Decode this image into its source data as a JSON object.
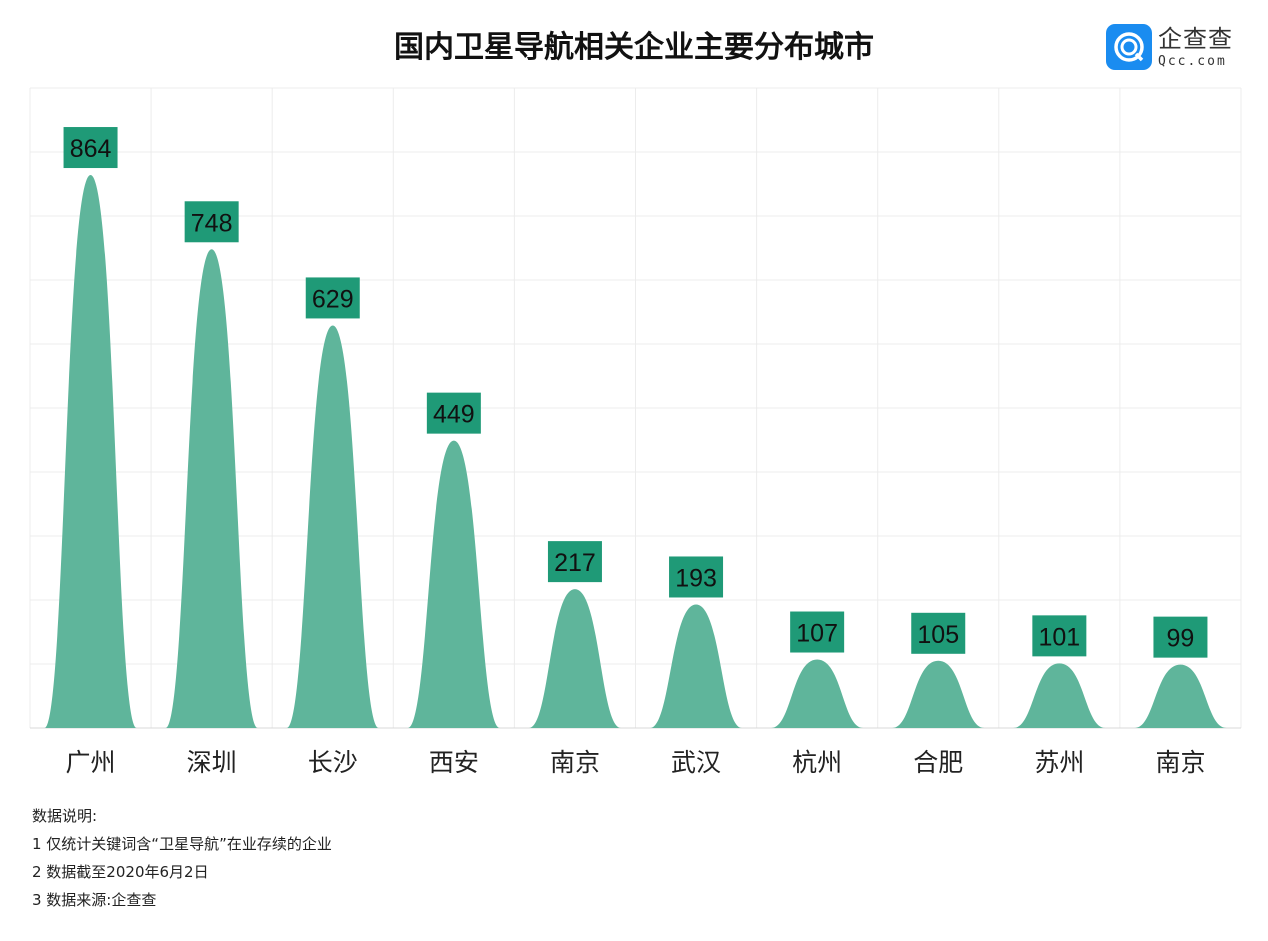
{
  "title": "国内卫星导航相关企业主要分布城市",
  "logo": {
    "cn": "企查查",
    "en": "Qcc.com",
    "color": "#1a8cf0"
  },
  "chart_data": {
    "type": "bar",
    "categories": [
      "广州",
      "深圳",
      "长沙",
      "西安",
      "南京",
      "武汉",
      "杭州",
      "合肥",
      "苏州",
      "南京"
    ],
    "values": [
      864,
      748,
      629,
      449,
      217,
      193,
      107,
      105,
      101,
      99
    ],
    "ylim": [
      0,
      1000
    ],
    "grid": true,
    "bar_shape": "bell",
    "bar_color": "#5fb59b",
    "label_bg": "#1f9a77"
  },
  "notes": {
    "heading": "数据说明:",
    "lines": [
      "1 仅统计关键词含“卫星导航”在业存续的企业",
      "2 数据截至2020年6月2日",
      "3 数据来源:企查查"
    ]
  }
}
